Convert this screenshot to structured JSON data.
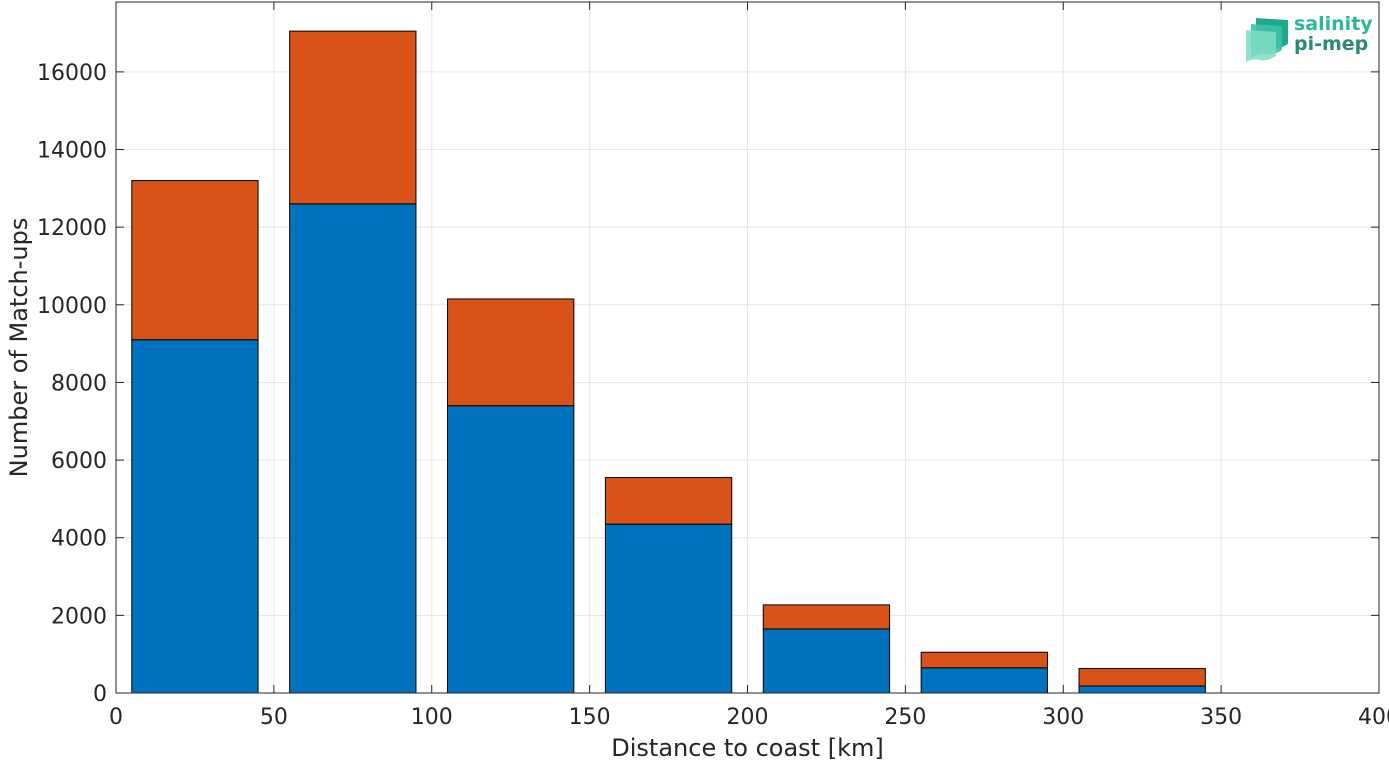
{
  "chart_data": {
    "type": "bar",
    "stacked": true,
    "title": "",
    "xlabel": "Distance to coast [km]",
    "ylabel": "Number of Match-ups",
    "xlim": [
      0,
      400
    ],
    "ylim": [
      0,
      17800
    ],
    "xticks": [
      0,
      50,
      100,
      150,
      200,
      250,
      300,
      350,
      400
    ],
    "yticks": [
      0,
      2000,
      4000,
      6000,
      8000,
      10000,
      12000,
      14000,
      16000
    ],
    "grid": true,
    "bin_width": 40,
    "x": [
      25,
      75,
      125,
      175,
      225,
      275,
      325
    ],
    "series": [
      {
        "values": [
          9100,
          12600,
          7400,
          4350,
          1650,
          650,
          180
        ],
        "color": "#0072bd"
      },
      {
        "values": [
          4100,
          4450,
          2750,
          1200,
          620,
          400,
          450
        ],
        "color": "#d95319"
      }
    ]
  },
  "logo": {
    "line1": "salinity",
    "line2": "pi-mep",
    "icon": "layered-waves-icon",
    "color": "#2cb79b"
  }
}
